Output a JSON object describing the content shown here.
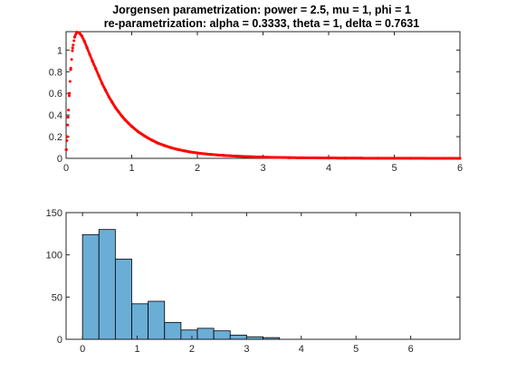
{
  "chart_data": [
    {
      "type": "scatter",
      "title": "Jorgensen parametrization: power = 2.5, mu = 1, phi = 1",
      "subtitle": "re-parametrization: alpha = 0.3333, theta = 1, delta = 0.7631",
      "xlabel": "",
      "ylabel": "",
      "xlim": [
        0,
        6
      ],
      "ylim": [
        0,
        1.17
      ],
      "xticks": [
        "0",
        "1",
        "2",
        "3",
        "4",
        "5",
        "6"
      ],
      "yticks": [
        "0",
        "0.2",
        "0.4",
        "0.6",
        "0.8",
        "1"
      ],
      "xtick_values": [
        0,
        1,
        2,
        3,
        4,
        5,
        6
      ],
      "ytick_values": [
        0,
        0.2,
        0.4,
        0.6,
        0.8,
        1
      ],
      "grid": false,
      "marker_color": "#ff0000",
      "x": [
        0.005,
        0.015,
        0.03,
        0.05,
        0.07,
        0.1,
        0.13,
        0.16,
        0.2,
        0.24,
        0.28,
        0.32,
        0.36,
        0.4,
        0.45,
        0.5,
        0.55,
        0.6,
        0.65,
        0.7,
        0.75,
        0.8,
        0.85,
        0.9,
        0.95,
        1.0,
        1.1,
        1.2,
        1.3,
        1.4,
        1.5,
        1.6,
        1.7,
        1.8,
        1.9,
        2.0,
        2.2,
        2.4,
        2.6,
        2.8,
        3.0,
        3.2,
        3.4,
        3.6,
        3.8,
        4.0,
        4.25,
        4.5,
        4.75,
        5.0,
        5.25,
        5.5,
        5.75,
        6.0
      ],
      "y": [
        0.08,
        0.2,
        0.38,
        0.6,
        0.82,
        1.02,
        1.12,
        1.165,
        1.16,
        1.13,
        1.08,
        1.02,
        0.96,
        0.9,
        0.83,
        0.76,
        0.69,
        0.63,
        0.57,
        0.52,
        0.47,
        0.43,
        0.39,
        0.355,
        0.325,
        0.295,
        0.245,
        0.205,
        0.17,
        0.14,
        0.118,
        0.098,
        0.082,
        0.069,
        0.058,
        0.049,
        0.036,
        0.027,
        0.02,
        0.015,
        0.011,
        0.0085,
        0.0065,
        0.005,
        0.0038,
        0.003,
        0.0022,
        0.0016,
        0.0012,
        0.0009,
        0.0007,
        0.0005,
        0.0004,
        0.0003
      ]
    },
    {
      "type": "bar",
      "title": "",
      "xlabel": "",
      "ylabel": "",
      "xlim": [
        -0.3,
        6.9
      ],
      "ylim": [
        0,
        150
      ],
      "xticks": [
        "0",
        "1",
        "2",
        "3",
        "4",
        "5",
        "6"
      ],
      "yticks": [
        "0",
        "50",
        "100",
        "150"
      ],
      "xtick_values": [
        0,
        1,
        2,
        3,
        4,
        5,
        6
      ],
      "ytick_values": [
        0,
        50,
        100,
        150
      ],
      "grid": false,
      "bar_color": "#6aaed6",
      "bin_edges": [
        0,
        0.3,
        0.6,
        0.9,
        1.2,
        1.5,
        1.8,
        2.1,
        2.4,
        2.7,
        3.0,
        3.3,
        3.6
      ],
      "values": [
        124,
        130,
        95,
        42,
        45,
        20,
        11,
        13,
        10,
        5,
        3,
        2
      ]
    }
  ]
}
